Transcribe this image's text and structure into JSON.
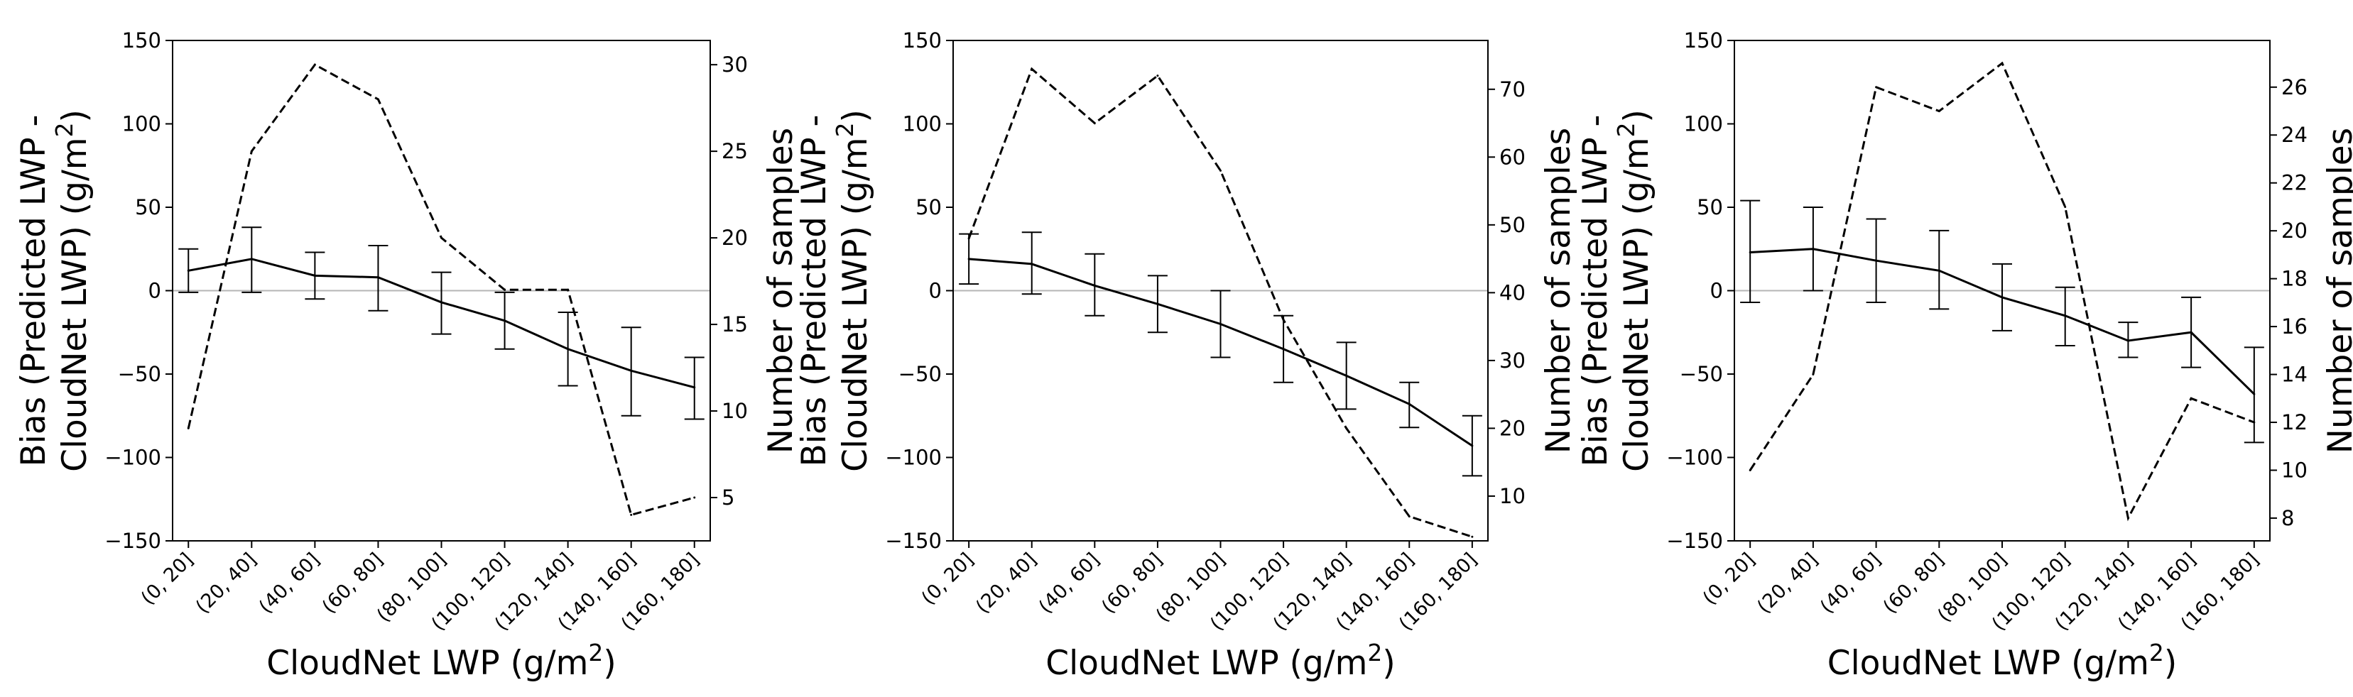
{
  "chart_data": [
    {
      "type": "line",
      "categories": [
        "(0, 20]",
        "(20, 40]",
        "(40, 60]",
        "(60, 80]",
        "(80, 100]",
        "(100, 120]",
        "(120, 140]",
        "(140, 160]",
        "(160, 180]"
      ],
      "xlabel": "CloudNet LWP (g/m²)",
      "ylabel_lines": [
        "Bias (Predicted LWP -",
        "CloudNet LWP) (g/m²)"
      ],
      "ylim": [
        -150,
        150
      ],
      "yticks": [
        150,
        100,
        50,
        0,
        -50,
        -100,
        -150
      ],
      "y2label": "Number of samples",
      "y2lim": [
        2.5,
        31.4
      ],
      "y2ticks": [
        30,
        25,
        20,
        15,
        10,
        5
      ],
      "series": [
        {
          "name": "Bias",
          "style": "solid",
          "axis": "left",
          "values": [
            12,
            19,
            9,
            8,
            -7,
            -18,
            -35,
            -48,
            -58
          ],
          "err_low": [
            -1,
            -1,
            -5,
            -12,
            -26,
            -35,
            -57,
            -75,
            -77
          ],
          "err_high": [
            25,
            38,
            23,
            27,
            11,
            -1,
            -13,
            -22,
            -40
          ]
        },
        {
          "name": "Number of samples",
          "style": "dashed",
          "axis": "right",
          "values": [
            9,
            25,
            30,
            28,
            20,
            17,
            17,
            4,
            5
          ]
        }
      ]
    },
    {
      "type": "line",
      "categories": [
        "(0, 20]",
        "(20, 40]",
        "(40, 60]",
        "(60, 80]",
        "(80, 100]",
        "(100, 120]",
        "(120, 140]",
        "(140, 160]",
        "(160, 180]"
      ],
      "xlabel": "CloudNet LWP (g/m²)",
      "ylabel_lines": [
        "Bias (Predicted LWP -",
        "CloudNet LWP) (g/m²)"
      ],
      "ylim": [
        -150,
        150
      ],
      "yticks": [
        150,
        100,
        50,
        0,
        -50,
        -100,
        -150
      ],
      "y2label": "Number of samples",
      "y2lim": [
        3.4,
        77.2
      ],
      "y2ticks": [
        70,
        60,
        50,
        40,
        30,
        20,
        10
      ],
      "series": [
        {
          "name": "Bias",
          "style": "solid",
          "axis": "left",
          "values": [
            19,
            16,
            3,
            -8,
            -20,
            -35,
            -51,
            -68,
            -93
          ],
          "err_low": [
            4,
            -2,
            -15,
            -25,
            -40,
            -55,
            -71,
            -82,
            -111
          ],
          "err_high": [
            34,
            35,
            22,
            9,
            0,
            -15,
            -31,
            -55,
            -75
          ]
        },
        {
          "name": "Number of samples",
          "style": "dashed",
          "axis": "right",
          "values": [
            48,
            73,
            65,
            72,
            58,
            36,
            20,
            7,
            4
          ]
        }
      ]
    },
    {
      "type": "line",
      "categories": [
        "(0, 20]",
        "(20, 40]",
        "(40, 60]",
        "(60, 80]",
        "(80, 100]",
        "(100, 120]",
        "(120, 140]",
        "(140, 160]",
        "(160, 180]"
      ],
      "xlabel": "CloudNet LWP (g/m²)",
      "ylabel_lines": [
        "Bias (Predicted LWP -",
        "CloudNet LWP) (g/m²)"
      ],
      "ylim": [
        -150,
        150
      ],
      "yticks": [
        150,
        100,
        50,
        0,
        -50,
        -100,
        -150
      ],
      "y2label": "Number of samples",
      "y2lim": [
        7.05,
        27.95
      ],
      "y2ticks": [
        26,
        24,
        22,
        20,
        18,
        16,
        14,
        12,
        10,
        8
      ],
      "series": [
        {
          "name": "Bias",
          "style": "solid",
          "axis": "left",
          "values": [
            23,
            25,
            18,
            12,
            -4,
            -15,
            -30,
            -25,
            -62
          ],
          "err_low": [
            -7,
            0,
            -7,
            -11,
            -24,
            -33,
            -40,
            -46,
            -91
          ],
          "err_high": [
            54,
            50,
            43,
            36,
            16,
            2,
            -19,
            -4,
            -34
          ]
        },
        {
          "name": "Number of samples",
          "style": "dashed",
          "axis": "right",
          "values": [
            10,
            14,
            26,
            25,
            27,
            21,
            8,
            13,
            12
          ]
        }
      ]
    }
  ]
}
